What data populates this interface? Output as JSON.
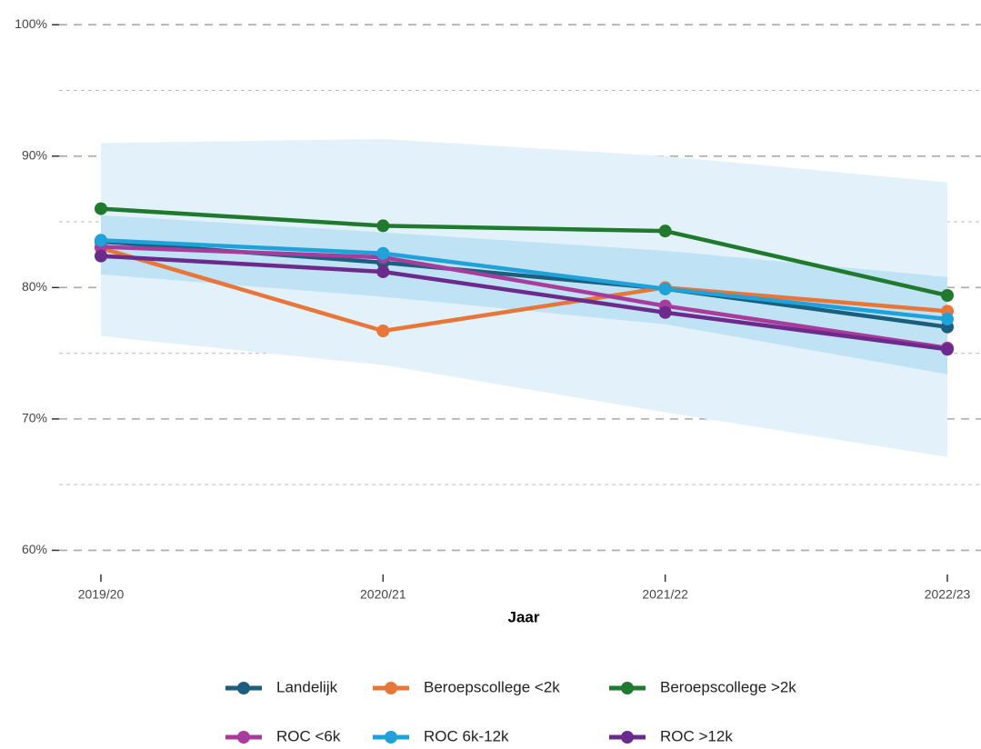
{
  "chart_data": {
    "type": "line",
    "xlabel": "Jaar",
    "categories": [
      "2019/20",
      "2020/21",
      "2021/22",
      "2022/23"
    ],
    "series": [
      {
        "name": "Landelijk",
        "color": "#1b5e7e",
        "values": [
          83.5,
          81.9,
          79.9,
          77.0
        ]
      },
      {
        "name": "Beroepscollege <2k",
        "color": "#e8763a",
        "values": [
          83.0,
          76.7,
          80.0,
          78.2
        ]
      },
      {
        "name": "Beroepscollege >2k",
        "color": "#1f7a2e",
        "values": [
          86.0,
          84.7,
          84.3,
          79.4
        ]
      },
      {
        "name": "ROC <6k",
        "color": "#a83c9c",
        "values": [
          83.1,
          82.3,
          78.6,
          75.4
        ]
      },
      {
        "name": "ROC 6k-12k",
        "color": "#1fa2d9",
        "values": [
          83.6,
          82.6,
          79.9,
          77.6
        ]
      },
      {
        "name": "ROC >12k",
        "color": "#6b2a8c",
        "values": [
          82.4,
          81.2,
          78.1,
          75.3
        ]
      }
    ],
    "bands": [
      {
        "color": "#e3f2fa",
        "lower": [
          76.3,
          74.1,
          70.5,
          67.1
        ],
        "upper": [
          91.0,
          91.3,
          90.0,
          88.0
        ]
      },
      {
        "color": "#bfe3f4",
        "lower": [
          81.0,
          79.3,
          77.2,
          73.4
        ],
        "upper": [
          85.5,
          84.2,
          82.8,
          80.8
        ]
      }
    ],
    "ylim": [
      58.3,
      100.5
    ],
    "yticks": [
      {
        "value": 60,
        "label": "60%"
      },
      {
        "value": 70,
        "label": "70%"
      },
      {
        "value": 80,
        "label": "80%"
      },
      {
        "value": 90,
        "label": "90%"
      },
      {
        "value": 100,
        "label": "100%"
      }
    ],
    "minor_yticks": [
      65,
      75,
      85,
      95
    ],
    "grid": true,
    "legend": "bottom"
  }
}
